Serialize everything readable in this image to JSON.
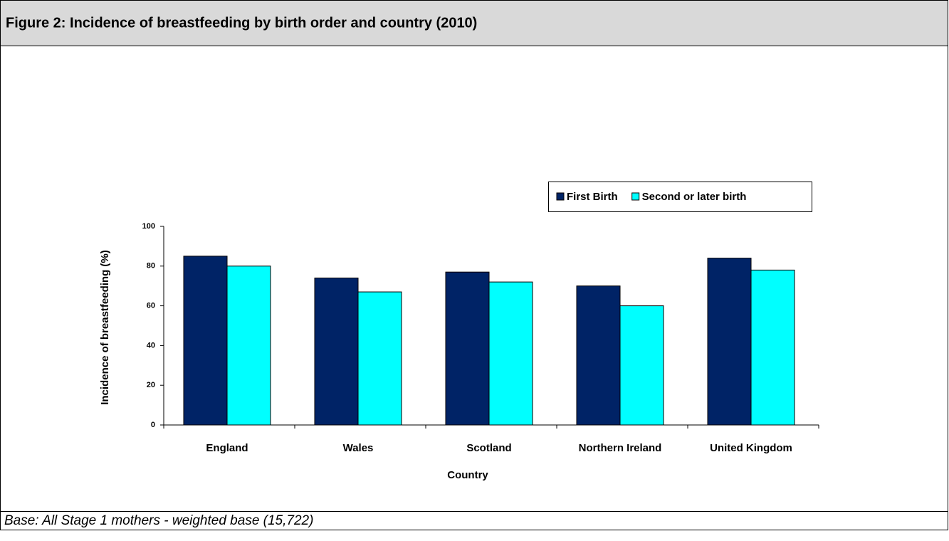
{
  "chart_data": {
    "type": "bar",
    "title": "Figure 2: Incidence of breastfeeding by birth order and country (2010)",
    "categories": [
      "England",
      "Wales",
      "Scotland",
      "Northern Ireland",
      "United Kingdom"
    ],
    "series": [
      {
        "name": "First Birth",
        "color": "#002366",
        "values": [
          85,
          74,
          77,
          70,
          84
        ]
      },
      {
        "name": "Second or later birth",
        "color": "#00ffff",
        "values": [
          80,
          67,
          72,
          60,
          78
        ]
      }
    ],
    "ylim": [
      0,
      100
    ],
    "yticks": [
      0,
      20,
      40,
      60,
      80,
      100
    ],
    "x_label": "Country",
    "y_label": "Incidence of breastfeeding (%)",
    "legend": "top-right",
    "note": "Base: All Stage 1 mothers - weighted base (15,722)"
  }
}
